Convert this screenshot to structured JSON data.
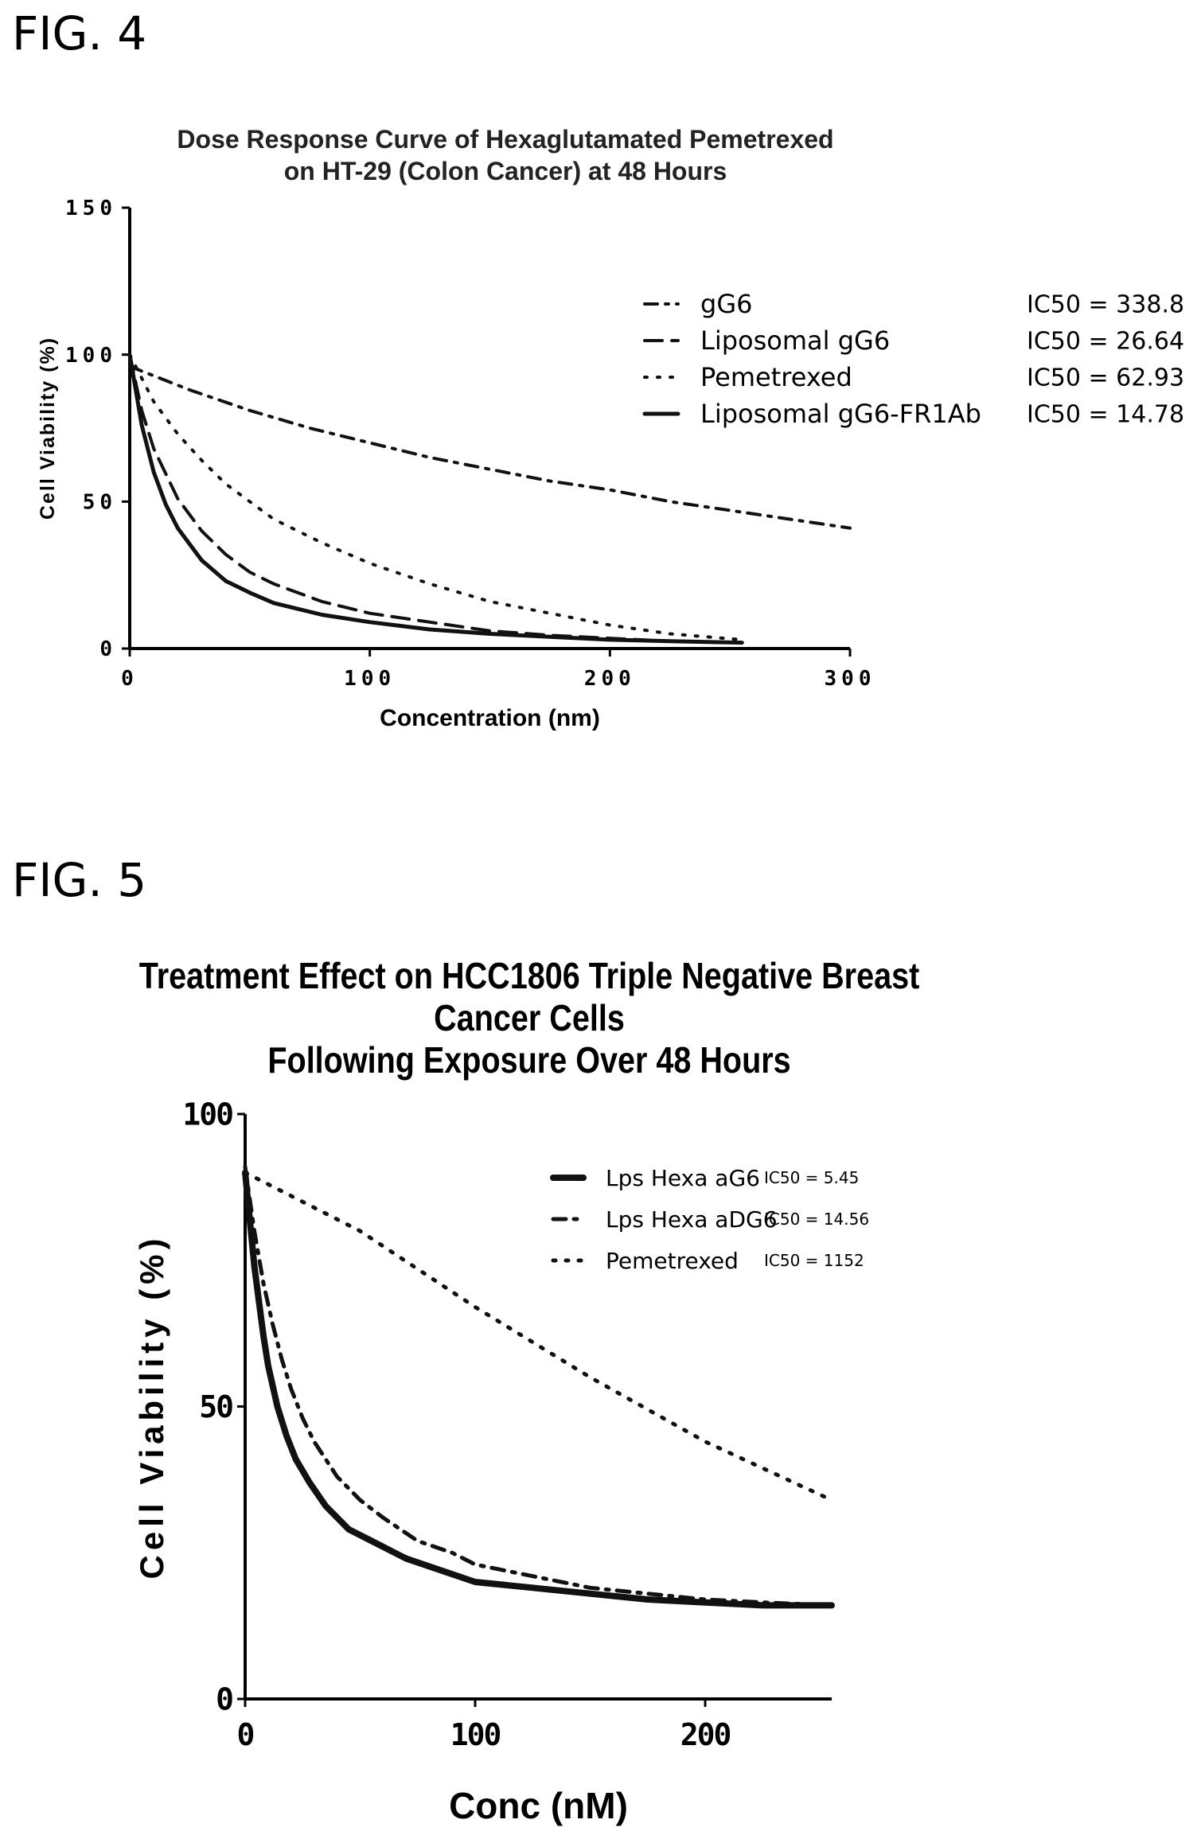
{
  "figures": [
    {
      "label": "FIG. 4"
    },
    {
      "label": "FIG. 5"
    }
  ],
  "chart_data": [
    {
      "type": "line",
      "title": "Dose Response Curve of Hexaglutamated Pemetrexed\non HT-29 (Colon Cancer) at 48 Hours",
      "xlabel": "Concentration (nm)",
      "ylabel": "Cell Viability (%)",
      "xlim": [
        0,
        300
      ],
      "ylim": [
        0,
        150
      ],
      "xticks": [
        0,
        100,
        200,
        300
      ],
      "yticks": [
        0,
        50,
        100,
        150
      ],
      "grid": false,
      "legend_position": "top-right",
      "series": [
        {
          "name": "gG6",
          "ic50": "IC50 = 338.8",
          "style": "dash-dot",
          "x": [
            0,
            25,
            50,
            75,
            100,
            125,
            150,
            175,
            200,
            225,
            250,
            275,
            300
          ],
          "y": [
            96,
            88,
            81,
            75,
            70,
            65,
            61,
            57,
            54,
            50,
            47,
            44,
            41
          ]
        },
        {
          "name": "Liposomal gG6",
          "ic50": "IC50 = 26.64",
          "style": "dashed",
          "x": [
            0,
            5,
            10,
            20,
            30,
            40,
            50,
            60,
            80,
            100,
            125,
            150,
            175,
            200,
            225,
            255
          ],
          "y": [
            100,
            81,
            68,
            51,
            40,
            32,
            26,
            22,
            16,
            12,
            9,
            6,
            4.5,
            3.5,
            2.5,
            2
          ]
        },
        {
          "name": "Pemetrexed",
          "ic50": "IC50 = 62.93",
          "style": "dotted",
          "x": [
            0,
            10,
            20,
            30,
            40,
            50,
            60,
            80,
            100,
            125,
            150,
            175,
            200,
            225,
            255
          ],
          "y": [
            100,
            84,
            73,
            64,
            56,
            50,
            44,
            36,
            29,
            22,
            16,
            12,
            8,
            5,
            3
          ]
        },
        {
          "name": "Liposomal gG6-FR1Ab",
          "ic50": "IC50 = 14.78",
          "style": "solid",
          "x": [
            0,
            5,
            10,
            15,
            20,
            30,
            40,
            50,
            60,
            80,
            100,
            125,
            150,
            175,
            200,
            225,
            255
          ],
          "y": [
            100,
            76,
            60,
            49,
            41,
            30,
            23,
            19,
            15.5,
            11.5,
            9,
            6.5,
            5,
            4,
            3,
            2.5,
            2
          ]
        }
      ]
    },
    {
      "type": "line",
      "title": "Treatment Effect on HCC1806 Triple Negative Breast Cancer Cells\nFollowing Exposure Over 48 Hours",
      "xlabel": "Conc (nM)",
      "ylabel": "Cell Viability (%)",
      "xlim": [
        0,
        255
      ],
      "ylim": [
        0,
        100
      ],
      "xticks": [
        0,
        100,
        200
      ],
      "yticks": [
        0,
        50,
        100
      ],
      "grid": false,
      "legend_position": "top-right",
      "series": [
        {
          "name": "Lps Hexa aG6",
          "ic50": "IC50 = 5.45",
          "style": "solid",
          "x": [
            0,
            2,
            4,
            6,
            8,
            10,
            14,
            18,
            22,
            28,
            35,
            45,
            55,
            70,
            85,
            100,
            125,
            150,
            175,
            200,
            225,
            255
          ],
          "y": [
            90,
            82,
            74,
            68,
            62,
            57,
            50,
            45,
            41,
            37,
            33,
            29,
            27,
            24,
            22,
            20,
            19,
            18,
            17,
            16.5,
            16,
            16
          ]
        },
        {
          "name": "Lps Hexa aDG6",
          "ic50": "IC50 = 14.56",
          "style": "dash-dot",
          "x": [
            0,
            4,
            8,
            12,
            16,
            20,
            25,
            30,
            40,
            50,
            60,
            75,
            90,
            100,
            125,
            150,
            175,
            200,
            225,
            255
          ],
          "y": [
            91,
            80,
            71,
            64,
            58,
            53,
            48,
            44,
            38,
            34,
            31,
            27,
            25,
            23,
            21,
            19,
            18,
            17,
            16.5,
            16
          ]
        },
        {
          "name": "Pemetrexed",
          "ic50": "IC50 = 1152",
          "style": "dotted",
          "x": [
            0,
            50,
            100,
            150,
            200,
            255
          ],
          "y": [
            90,
            80,
            67,
            55,
            44,
            34
          ]
        }
      ]
    }
  ]
}
